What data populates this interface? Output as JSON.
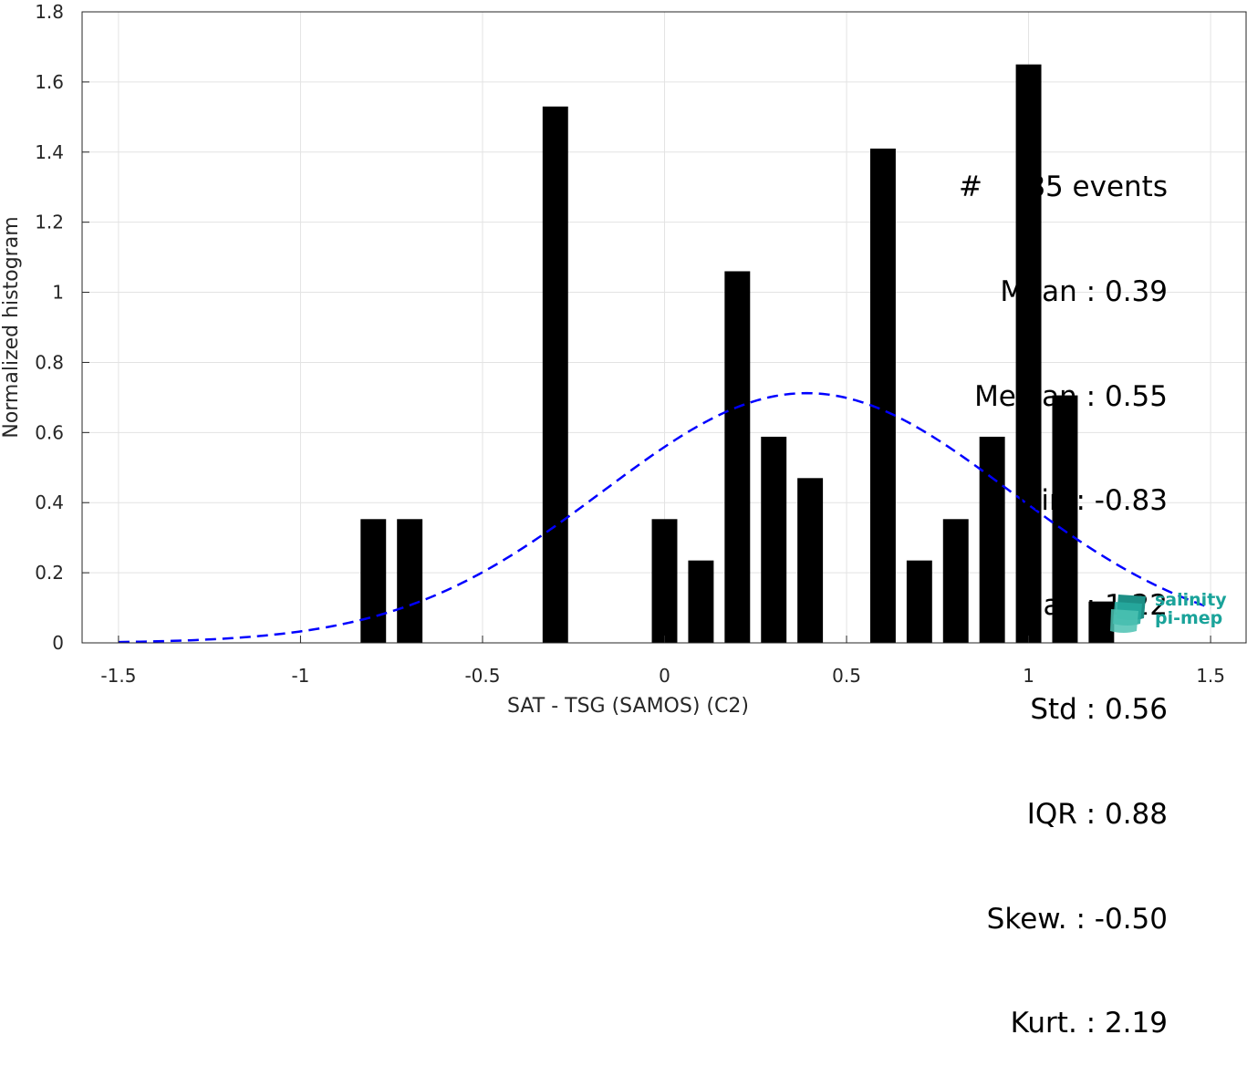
{
  "chart_data": {
    "type": "bar",
    "xlabel": "SAT - TSG (SAMOS) (C2)",
    "ylabel": "Normalized histogram",
    "xlim": [
      -1.6,
      1.6
    ],
    "ylim": [
      0,
      1.8
    ],
    "xticks": [
      "-1.5",
      "-1",
      "-0.5",
      "0",
      "0.5",
      "1",
      "1.5"
    ],
    "xtick_values": [
      -1.5,
      -1,
      -0.5,
      0,
      0.5,
      1,
      1.5
    ],
    "yticks": [
      "0",
      "0.2",
      "0.4",
      "0.6",
      "0.8",
      "1",
      "1.2",
      "1.4",
      "1.6",
      "1.8"
    ],
    "ytick_values": [
      0,
      0.2,
      0.4,
      0.6,
      0.8,
      1.0,
      1.2,
      1.4,
      1.6,
      1.8
    ],
    "grid": true,
    "bin_width": 0.07,
    "bars": [
      {
        "x": -0.8,
        "value": 0.353
      },
      {
        "x": -0.7,
        "value": 0.353
      },
      {
        "x": -0.3,
        "value": 1.53
      },
      {
        "x": 0.0,
        "value": 0.353
      },
      {
        "x": 0.1,
        "value": 0.235
      },
      {
        "x": 0.2,
        "value": 1.06
      },
      {
        "x": 0.3,
        "value": 0.588
      },
      {
        "x": 0.4,
        "value": 0.47
      },
      {
        "x": 0.6,
        "value": 1.41
      },
      {
        "x": 0.7,
        "value": 0.235
      },
      {
        "x": 0.8,
        "value": 0.353
      },
      {
        "x": 0.9,
        "value": 0.588
      },
      {
        "x": 1.0,
        "value": 1.65
      },
      {
        "x": 1.1,
        "value": 0.706
      },
      {
        "x": 1.2,
        "value": 0.118
      }
    ],
    "fit_curve": {
      "kind": "gaussian",
      "mean": 0.39,
      "std": 0.56,
      "x_range": [
        -1.5,
        1.5
      ],
      "color": "#0000ff",
      "style": "dashed"
    },
    "bar_color": "#000000"
  },
  "stats": {
    "lines": [
      "#     85 events",
      "Mean : 0.39",
      "Median : 0.55",
      "Min : -0.83",
      "Max : 1.22",
      "Std : 0.56",
      "IQR : 0.88",
      "Skew. : -0.50",
      "Kurt. : 2.19"
    ]
  },
  "logo": {
    "line1": "salinity",
    "line2": "pi-mep",
    "color": "#1aa39a"
  }
}
